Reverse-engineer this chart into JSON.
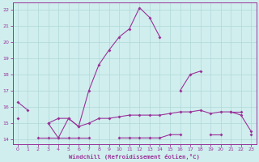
{
  "xlabel": "Windchill (Refroidissement éolien,°C)",
  "x": [
    0,
    1,
    2,
    3,
    4,
    5,
    6,
    7,
    8,
    9,
    10,
    11,
    12,
    13,
    14,
    15,
    16,
    17,
    18,
    19,
    20,
    21,
    22,
    23
  ],
  "line1_y": [
    16.3,
    15.8,
    null,
    15.0,
    14.1,
    15.3,
    14.8,
    17.0,
    18.6,
    19.5,
    20.3,
    20.8,
    22.1,
    21.5,
    20.3,
    null,
    17.0,
    18.0,
    18.2,
    null,
    null,
    15.7,
    15.7,
    null
  ],
  "line2_y": [
    15.3,
    null,
    null,
    15.0,
    15.3,
    15.3,
    14.8,
    15.0,
    15.3,
    15.3,
    15.4,
    15.5,
    15.5,
    15.5,
    15.5,
    15.6,
    15.7,
    15.7,
    15.8,
    15.6,
    15.7,
    15.7,
    15.5,
    14.5
  ],
  "line3_y": [
    null,
    null,
    14.1,
    14.1,
    14.1,
    14.1,
    14.1,
    14.1,
    null,
    null,
    14.1,
    14.1,
    14.1,
    14.1,
    14.1,
    14.3,
    14.3,
    null,
    null,
    14.3,
    14.3,
    null,
    null,
    14.3
  ],
  "bg_color": "#d0eeee",
  "grid_color": "#b0d8d8",
  "line_color": "#993399",
  "ylim": [
    14,
    22
  ],
  "xlim": [
    0,
    23
  ],
  "yticks": [
    14,
    15,
    16,
    17,
    18,
    19,
    20,
    21,
    22
  ],
  "xticks": [
    0,
    1,
    2,
    3,
    4,
    5,
    6,
    7,
    8,
    9,
    10,
    11,
    12,
    13,
    14,
    15,
    16,
    17,
    18,
    19,
    20,
    21,
    22,
    23
  ]
}
